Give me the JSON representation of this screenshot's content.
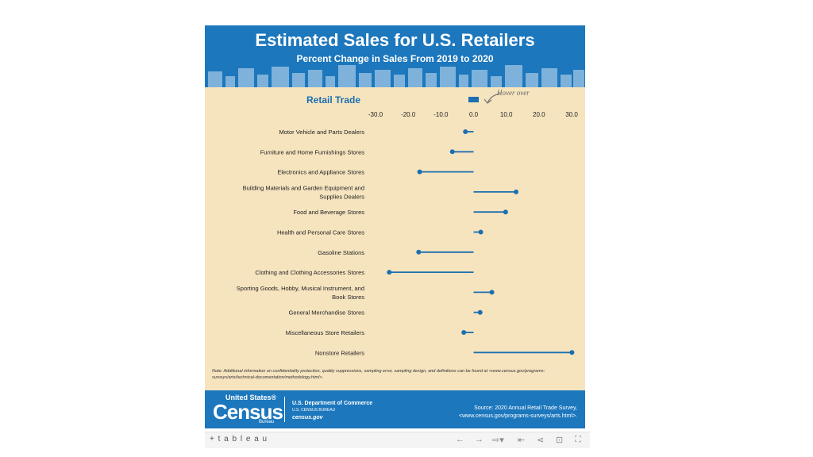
{
  "header": {
    "title": "Estimated Sales for U.S. Retailers",
    "subtitle": "Percent Change in Sales From 2019 to 2020"
  },
  "hover_hint": "Hover over",
  "chart_data": {
    "type": "dot-bar",
    "title": "Retail Trade",
    "xlim": [
      -30,
      30
    ],
    "xticks": [
      "-30.0",
      "-20.0",
      "-10.0",
      "0.0",
      "10.0",
      "20.0",
      "30.0"
    ],
    "categories": [
      "Motor Vehicle and Parts Dealers",
      "Furniture and Home Furnishings Stores",
      "Electronics and Appliance Stores",
      "Building Materials and Garden Equipment and Supplies Dealers",
      "Food and Beverage Stores",
      "Health and Personal Care Stores",
      "Gasoline Stations",
      "Clothing and Clothing Accessories Stores",
      "Sporting Goods, Hobby, Musical Instrument, and Book Stores",
      "General Merchandise Stores",
      "Miscellaneous Store Retailers",
      "Nonstore Retailers"
    ],
    "values": [
      -2.5,
      -6.5,
      -16.5,
      13.0,
      9.8,
      2.2,
      -16.8,
      -25.8,
      5.6,
      2.0,
      -3.0,
      30.1
    ],
    "series_color": "#1c6fb0",
    "grid": false
  },
  "note": "Note: Additional information on confidentiality protection, quality suppressions, sampling error, sampling design, and definitions can be found at <www.census.gov/programs-surveys/arts/technical-documentation/methodology.html>.",
  "footer": {
    "logo_us": "United States®",
    "logo_census": "Census",
    "logo_bureau": "Bureau",
    "dept": "U.S. Department of Commerce",
    "bureau": "U.S. CENSUS BUREAU",
    "site": "census.gov",
    "source_line1": "Source: 2020 Annual Retail Trade Survey,",
    "source_line2": "<www.census.gov/programs-surveys/arts.html>."
  },
  "toolbar": {
    "logo": "+ t a b l e a u",
    "icons": [
      "undo-icon",
      "redo-icon",
      "revert-icon",
      "pause-icon",
      "share-icon",
      "download-icon",
      "fullscreen-icon"
    ]
  }
}
